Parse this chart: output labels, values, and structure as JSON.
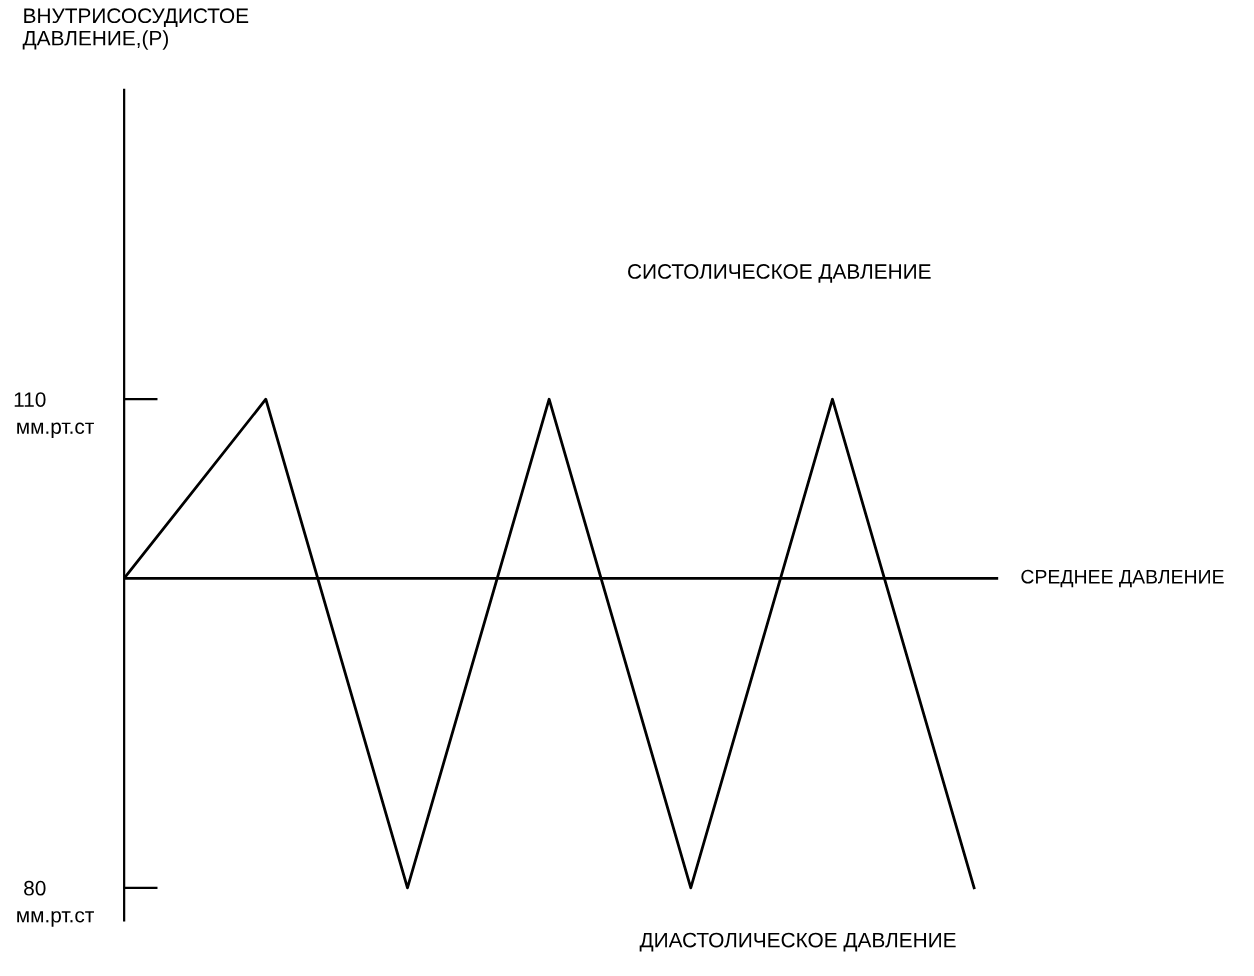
{
  "chart_data": {
    "type": "line",
    "ylabel": "ВНУТРИСОСУДИСТОЕ\nДАВЛЕНИЕ,(Р)",
    "categories": [
      null,
      null,
      null,
      null,
      null,
      null,
      null
    ],
    "series": [
      {
        "color": "#000000",
        "values": [
          99,
          110,
          80,
          110,
          80,
          110,
          80
        ]
      }
    ],
    "ylim": [
      78,
      129
    ],
    "yticks": [
      80,
      110
    ],
    "ref_lines": [
      {
        "axis": "y",
        "value": 99,
        "label": "СРЕДНЕЕ ДАВЛЕНИЕ",
        "color": "#000000"
      }
    ],
    "annotations": [
      "СИСТОЛИЧЕСКОЕ ДАВЛЕНИЕ",
      "ДИАСТОЛИЧЕСКОЕ ДАВЛЕНИЕ",
      "мм.рт.ст",
      "мм.рт.ст"
    ],
    "tick_labels": "y",
    "grid": false,
    "marker": "none",
    "line_style": "solid"
  }
}
